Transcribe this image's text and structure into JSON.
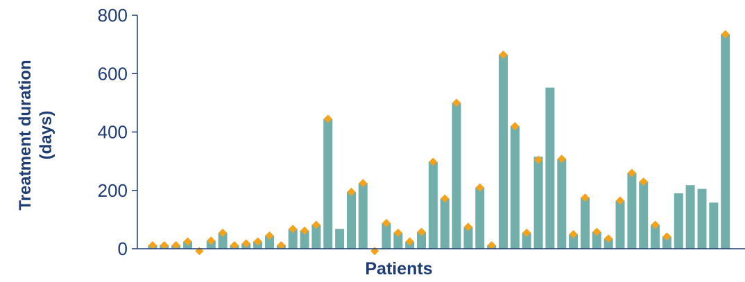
{
  "chart_data": {
    "type": "bar",
    "xlabel": "Patients",
    "ylabel_line1": "Treatment duration",
    "ylabel_line2": "(days)",
    "ylim": [
      0,
      800
    ],
    "yticks": [
      "0",
      "200",
      "400",
      "600",
      "800"
    ],
    "ytick_values": [
      0,
      200,
      400,
      600,
      800
    ],
    "bar_color": "#72aeaa",
    "marker_color": "#f5a21b",
    "axis_color": "#1f3d73",
    "values": [
      12,
      12,
      12,
      25,
      0,
      28,
      55,
      12,
      18,
      25,
      45,
      12,
      68,
      62,
      82,
      445,
      68,
      195,
      225,
      0,
      88,
      55,
      25,
      58,
      298,
      172,
      500,
      75,
      210,
      12,
      665,
      420,
      55,
      315,
      552,
      308,
      50,
      175,
      58,
      35,
      165,
      260,
      230,
      82,
      42,
      190,
      218,
      205,
      158,
      735
    ],
    "markers": [
      true,
      true,
      true,
      true,
      true,
      true,
      true,
      true,
      true,
      true,
      true,
      true,
      true,
      true,
      true,
      true,
      false,
      true,
      true,
      true,
      true,
      true,
      true,
      true,
      true,
      true,
      true,
      true,
      true,
      true,
      true,
      true,
      true,
      true,
      false,
      true,
      true,
      true,
      true,
      true,
      true,
      true,
      true,
      true,
      true,
      false,
      false,
      false,
      false,
      true
    ],
    "marker_values": [
      12,
      12,
      12,
      25,
      -8,
      28,
      55,
      12,
      18,
      25,
      45,
      12,
      68,
      62,
      82,
      445,
      0,
      195,
      225,
      -8,
      88,
      55,
      25,
      58,
      298,
      172,
      500,
      75,
      210,
      12,
      665,
      420,
      55,
      305,
      0,
      308,
      50,
      175,
      58,
      35,
      165,
      260,
      230,
      82,
      42,
      0,
      0,
      0,
      0,
      735
    ]
  }
}
